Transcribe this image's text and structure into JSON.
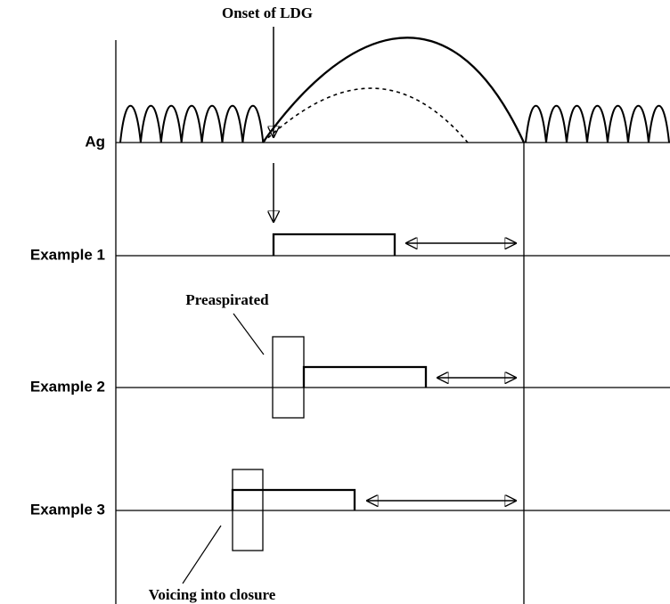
{
  "annotations": {
    "onset": "Onset of LDG",
    "preaspirated": "Preaspirated",
    "voicing": "Voicing into closure"
  },
  "rows": [
    "Ag",
    "Example 1",
    "Example 2",
    "Example 3"
  ]
}
